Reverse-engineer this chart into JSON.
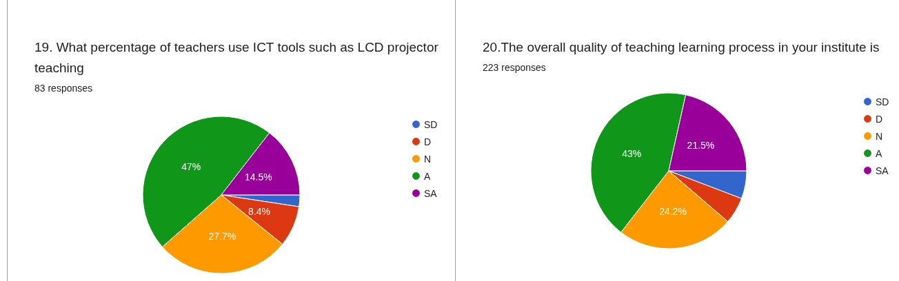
{
  "chart_data": [
    {
      "type": "pie",
      "title": "19. What percentage of teachers use ICT tools such as LCD projector teaching",
      "subtitle": "83 responses",
      "categories": [
        "SD",
        "D",
        "N",
        "A",
        "SA"
      ],
      "values": [
        2.4,
        8.4,
        27.7,
        47,
        14.5
      ],
      "colors": [
        "#3366cc",
        "#dc3912",
        "#ff9900",
        "#109618",
        "#990099"
      ],
      "value_labels": [
        null,
        "8.4%",
        "27.7%",
        "47%",
        "14.5%"
      ],
      "legend": "right"
    },
    {
      "type": "pie",
      "title": "20.The overall quality of teaching learning process in your institute is",
      "subtitle": "223 responses",
      "categories": [
        "SD",
        "D",
        "N",
        "A",
        "SA"
      ],
      "values": [
        5.8,
        5.5,
        24.2,
        43,
        21.5
      ],
      "colors": [
        "#3366cc",
        "#dc3912",
        "#ff9900",
        "#109618",
        "#990099"
      ],
      "value_labels": [
        null,
        null,
        "24.2%",
        "43%",
        "21.5%"
      ],
      "legend": "right"
    }
  ]
}
